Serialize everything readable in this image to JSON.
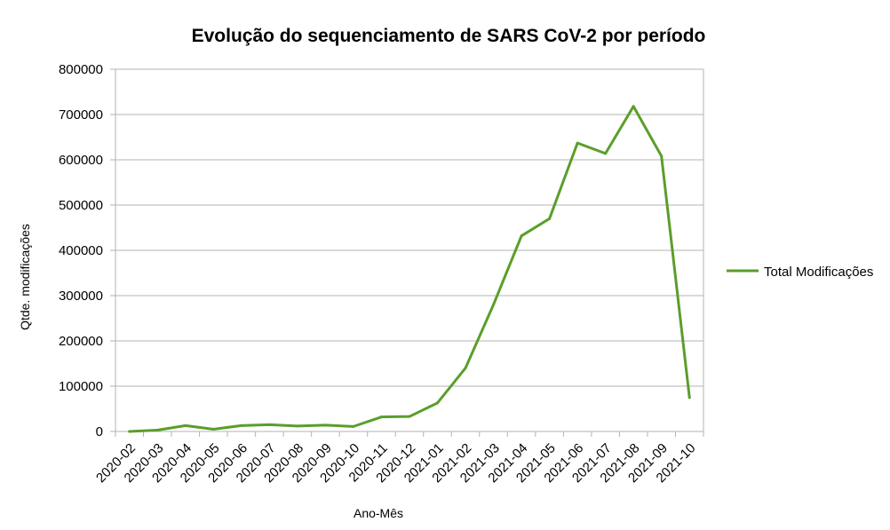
{
  "chart_data": {
    "type": "line",
    "title": "Evolução do sequenciamento de SARS CoV-2 por período",
    "xlabel": "Ano-Mês",
    "ylabel": "Qtde. modificações",
    "ylim": [
      0,
      800000
    ],
    "yticks": [
      0,
      100000,
      200000,
      300000,
      400000,
      500000,
      600000,
      700000,
      800000
    ],
    "grid": true,
    "legend_position": "right",
    "categories": [
      "2020-02",
      "2020-03",
      "2020-04",
      "2020-05",
      "2020-06",
      "2020-07",
      "2020-08",
      "2020-09",
      "2020-10",
      "2020-11",
      "2020-12",
      "2021-01",
      "2021-02",
      "2021-03",
      "2021-04",
      "2021-05",
      "2021-06",
      "2021-07",
      "2021-08",
      "2021-09",
      "2021-10"
    ],
    "series": [
      {
        "name": "Total Modificações",
        "color": "#5a9e2a",
        "values": [
          0,
          3000,
          13000,
          5000,
          13000,
          15000,
          12000,
          14000,
          11000,
          32000,
          33000,
          63000,
          140000,
          280000,
          432000,
          470000,
          637000,
          614000,
          718000,
          608000,
          75000
        ]
      }
    ]
  }
}
